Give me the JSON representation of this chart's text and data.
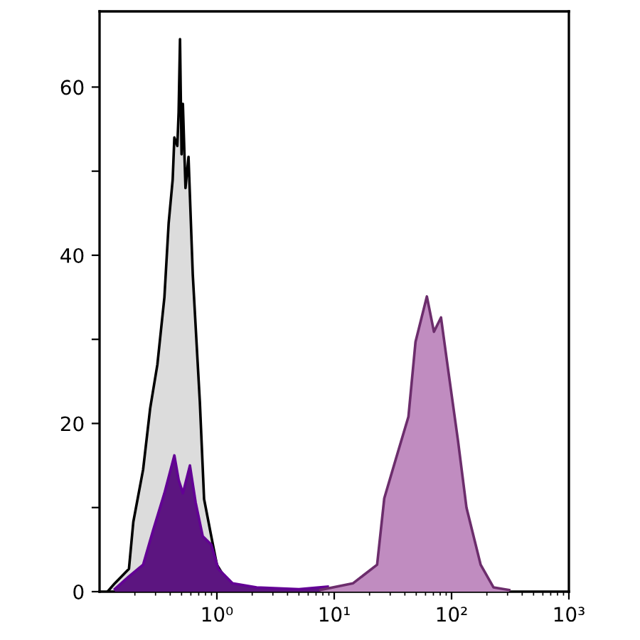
{
  "chart_data": {
    "type": "area",
    "log": "x",
    "xlim": [
      0.1,
      1000
    ],
    "ylim": [
      0,
      69
    ],
    "xticks": [
      {
        "value": 1,
        "label": "10⁰"
      },
      {
        "value": 10,
        "label": "10¹"
      },
      {
        "value": 100,
        "label": "10²"
      },
      {
        "value": 1000,
        "label": "10³"
      }
    ],
    "yticks": [
      0,
      {
        "value": 10,
        "label": null
      },
      20,
      {
        "value": 30,
        "label": null
      },
      40,
      {
        "value": 50,
        "label": null
      },
      60
    ],
    "grid": false,
    "series": [
      {
        "color": "#dcdcdc",
        "x": [
          0.117,
          0.135,
          0.178,
          0.194,
          0.235,
          0.27,
          0.311,
          0.357,
          0.388,
          0.42,
          0.434,
          0.46,
          0.472,
          0.485,
          0.5,
          0.513,
          0.54,
          0.573,
          0.623,
          0.716,
          0.778,
          0.895,
          1.0,
          1.25,
          1.79
        ],
        "values": [
          0,
          1,
          2.7,
          8.3,
          14.5,
          21.8,
          27,
          35,
          43.8,
          49,
          54,
          53,
          57,
          65.7,
          52,
          58,
          48,
          51.7,
          37.7,
          22.5,
          11,
          6.6,
          3.2,
          1,
          0.2
        ]
      },
      {
        "color": "#5c1580",
        "x": [
          0.135,
          0.178,
          0.235,
          0.286,
          0.357,
          0.434,
          0.472,
          0.513,
          0.589,
          0.659,
          0.757,
          0.895,
          1.028,
          1.36,
          2.18,
          5.0,
          8.8
        ],
        "values": [
          0.3,
          1.8,
          3.2,
          7.3,
          11.7,
          16.2,
          13.3,
          11.7,
          15,
          10.6,
          6.6,
          5.6,
          2.7,
          1,
          0.5,
          0.3,
          0.6
        ]
      },
      {
        "color": "#c08cc0",
        "x": [
          7.63,
          14.5,
          23.2,
          26.7,
          33.4,
          42.9,
          49.3,
          61.6,
          70.8,
          81.3,
          93.5,
          113.6,
          134,
          177,
          228,
          310
        ],
        "values": [
          0.2,
          1,
          3.2,
          11.1,
          15.7,
          20.8,
          29.7,
          35.1,
          30.9,
          32.6,
          26.4,
          17.9,
          10,
          3.2,
          0.5,
          0.2
        ]
      }
    ]
  }
}
